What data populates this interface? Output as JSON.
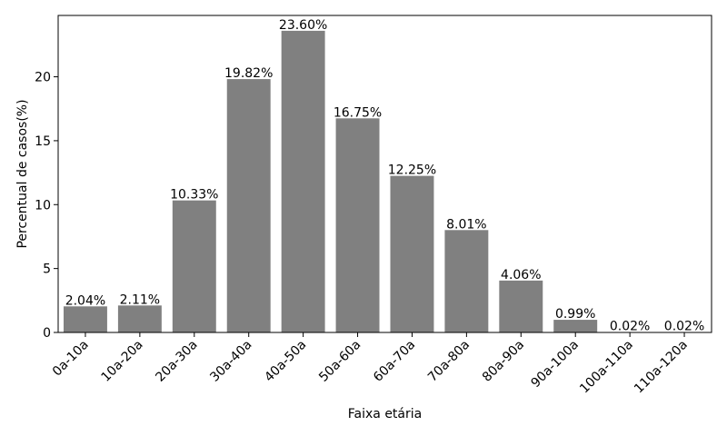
{
  "chart_data": {
    "type": "bar",
    "title": "",
    "xlabel": "Faixa etária",
    "ylabel": "Percentual de casos(%)",
    "categories": [
      "0a-10a",
      "10a-20a",
      "20a-30a",
      "30a-40a",
      "40a-50a",
      "50a-60a",
      "60a-70a",
      "70a-80a",
      "80a-90a",
      "90a-100a",
      "100a-110a",
      "110a-120a"
    ],
    "values": [
      2.04,
      2.11,
      10.33,
      19.82,
      23.6,
      16.75,
      12.25,
      8.01,
      4.06,
      0.99,
      0.02,
      0.02
    ],
    "value_labels": [
      "2.04%",
      "2.11%",
      "10.33%",
      "19.82%",
      "23.60%",
      "16.75%",
      "12.25%",
      "8.01%",
      "4.06%",
      "0.99%",
      "0.02%",
      "0.02%"
    ],
    "ylim": [
      0,
      24.8
    ],
    "yticks": [
      0,
      5,
      10,
      15,
      20
    ],
    "grid": false,
    "bar_color": "#808080"
  }
}
